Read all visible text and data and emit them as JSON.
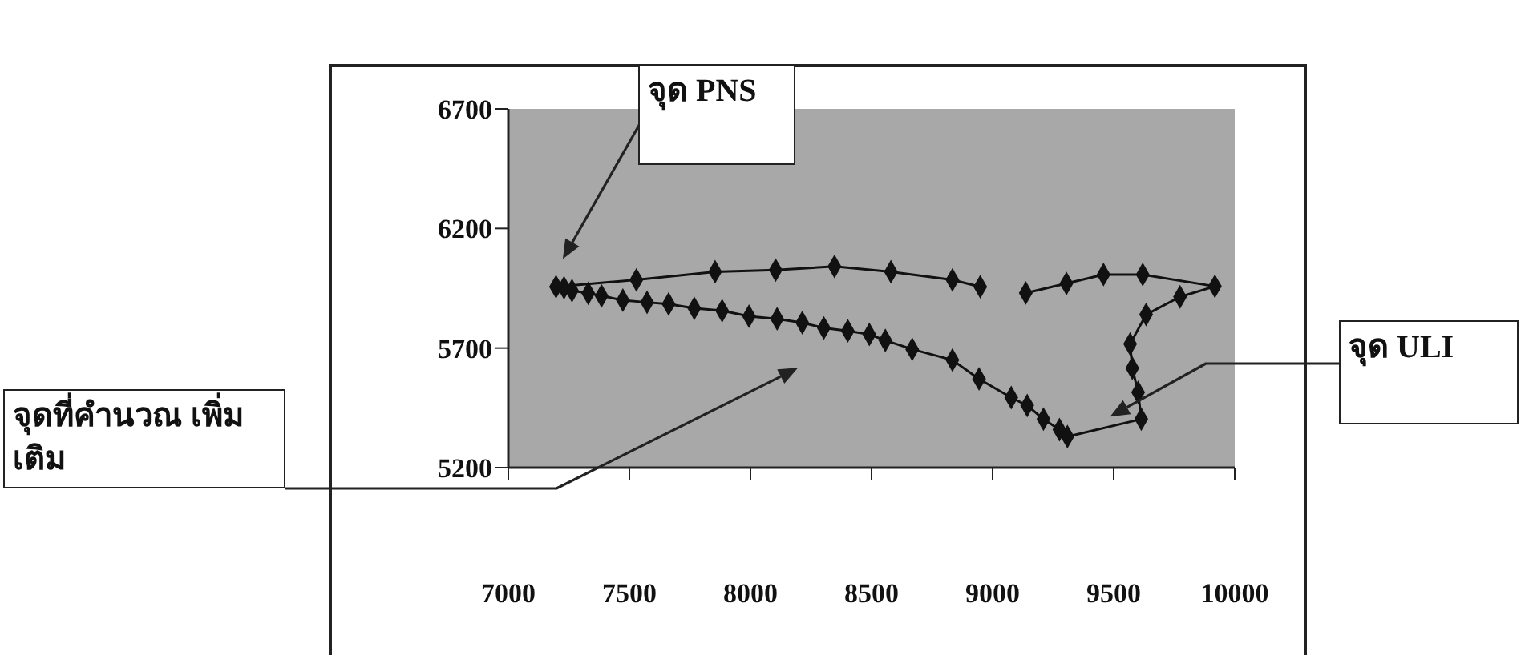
{
  "chart_data": {
    "type": "line",
    "marker": "diamond",
    "line_style": "solid",
    "xlim": [
      7000,
      10000
    ],
    "xticks": [
      7000,
      7500,
      8000,
      8500,
      9000,
      9500,
      10000
    ],
    "ylim": [
      5200,
      6700
    ],
    "yticks": [
      5200,
      5700,
      6200,
      6700
    ],
    "series": [
      {
        "color": "#111111",
        "x": [
          8949,
          8834,
          8580,
          8347,
          8104,
          7854,
          7529,
          7197,
          7230,
          7263,
          7330,
          7385,
          7473,
          7573,
          7662,
          7768,
          7883,
          7994,
          8110,
          8214,
          8303,
          8402,
          8491,
          8557,
          8668,
          8834,
          8944,
          9077,
          9143,
          9210,
          9276,
          9309,
          9614,
          9601,
          9577,
          9568,
          9634,
          9774,
          9918,
          9620,
          9458,
          9305,
          9137
        ],
        "values": [
          5956,
          5985,
          6019,
          6041,
          6026,
          6019,
          5985,
          5956,
          5952,
          5940,
          5929,
          5918,
          5900,
          5891,
          5884,
          5866,
          5856,
          5833,
          5822,
          5806,
          5784,
          5772,
          5757,
          5732,
          5695,
          5650,
          5571,
          5493,
          5460,
          5403,
          5359,
          5330,
          5403,
          5515,
          5616,
          5717,
          5840,
          5914,
          5958,
          6007,
          6007,
          5970,
          5930
        ]
      }
    ],
    "annotations": [
      "จุด PNS",
      "จุดที่คำนวณ เพิ่มเติม",
      "จุด ULI"
    ]
  }
}
